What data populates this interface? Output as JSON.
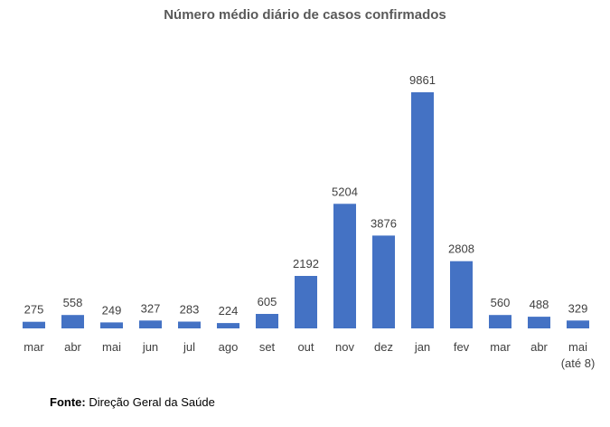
{
  "chart_data": {
    "type": "bar",
    "title": "Número médio diário de casos confirmados",
    "categories": [
      "mar",
      "abr",
      "mai",
      "jun",
      "jul",
      "ago",
      "set",
      "out",
      "nov",
      "dez",
      "jan",
      "fev",
      "mar",
      "abr",
      "mai\n(até 8)"
    ],
    "values": [
      275,
      558,
      249,
      327,
      283,
      224,
      605,
      2192,
      5204,
      3876,
      9861,
      2808,
      560,
      488,
      329
    ],
    "ylim": [
      0,
      10000
    ],
    "xlabel": "",
    "ylabel": "",
    "grid": false,
    "legend": "none",
    "bar_color": "#4472c4"
  },
  "source": {
    "label": "Fonte:",
    "text": " Direção Geral da Saúde"
  }
}
